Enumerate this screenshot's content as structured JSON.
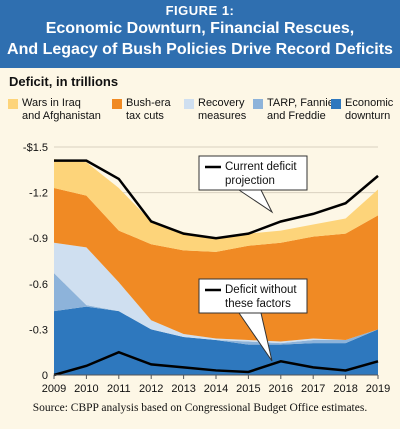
{
  "header": {
    "figure_label": "FIGURE 1:",
    "title_line1": "Economic Downturn, Financial Rescues,",
    "title_line2": "And Legacy of Bush Policies Drive Record Deficits"
  },
  "source": "Source: CBPP analysis based on Congressional Budget Office estimates.",
  "colors": {
    "header_bg": "#2f6fb0",
    "background": "#fdf7e6",
    "wars": "#fdd47a",
    "tax_cuts": "#f08a24",
    "recovery": "#cfdff0",
    "tarp": "#8db3da",
    "downturn": "#2e78be"
  },
  "chart_data": {
    "type": "area",
    "stacked": true,
    "ylabel": "Deficit, in trillions",
    "x": [
      "2009",
      "2010",
      "2011",
      "2012",
      "2013",
      "2014",
      "2015",
      "2016",
      "2017",
      "2018",
      "2019"
    ],
    "y_ticks": [
      "0",
      "-0.3",
      "-0.6",
      "-0.9",
      "-1.2",
      "-$1.5"
    ],
    "ylim": [
      0,
      1.5
    ],
    "series": [
      {
        "name": "Economic downturn",
        "color": "#2e78be",
        "values": [
          0.42,
          0.45,
          0.42,
          0.3,
          0.25,
          0.23,
          0.2,
          0.2,
          0.21,
          0.21,
          0.3
        ]
      },
      {
        "name": "TARP, Fannie, and Freddie",
        "color": "#8db3da",
        "values": [
          0.25,
          0.01,
          0.0,
          0.0,
          0.0,
          0.0,
          0.02,
          0.01,
          0.02,
          0.02,
          0.0
        ]
      },
      {
        "name": "Recovery measures",
        "color": "#cfdff0",
        "values": [
          0.2,
          0.38,
          0.19,
          0.06,
          0.02,
          0.01,
          0.01,
          0.01,
          0.01,
          0.0,
          0.0
        ]
      },
      {
        "name": "Bush-era tax cuts",
        "color": "#f08a24",
        "values": [
          0.36,
          0.34,
          0.34,
          0.5,
          0.55,
          0.57,
          0.62,
          0.65,
          0.67,
          0.7,
          0.75
        ]
      },
      {
        "name": "Wars in Iraq and Afghanistan",
        "color": "#fdd47a",
        "values": [
          0.19,
          0.22,
          0.28,
          0.15,
          0.12,
          0.09,
          0.08,
          0.08,
          0.08,
          0.1,
          0.17
        ]
      }
    ],
    "lines": [
      {
        "name": "Current deficit projection",
        "values": [
          1.41,
          1.41,
          1.29,
          1.01,
          0.93,
          0.9,
          0.93,
          1.01,
          1.06,
          1.13,
          1.31
        ]
      },
      {
        "name": "Deficit without these factors",
        "values": [
          0.0,
          0.06,
          0.15,
          0.07,
          0.05,
          0.03,
          0.02,
          0.09,
          0.05,
          0.03,
          0.09
        ]
      }
    ],
    "legend": [
      {
        "label_line1": "Wars in Iraq",
        "label_line2": "and Afghanistan",
        "color": "#fdd47a"
      },
      {
        "label_line1": "Bush-era",
        "label_line2": "tax cuts",
        "color": "#f08a24"
      },
      {
        "label_line1": "Recovery",
        "label_line2": "measures",
        "color": "#cfdff0"
      },
      {
        "label_line1": "TARP, Fannie,",
        "label_line2": "and Freddie",
        "color": "#8db3da"
      },
      {
        "label_line1": "Economic",
        "label_line2": "downturn",
        "color": "#2e78be"
      }
    ],
    "annotations": [
      {
        "line1": "Current deficit",
        "line2": "projection"
      },
      {
        "line1": "Deficit without",
        "line2": "these factors"
      }
    ]
  }
}
